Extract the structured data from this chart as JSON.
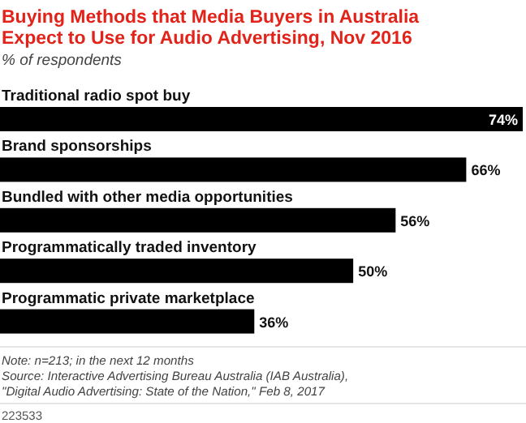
{
  "chart_data": {
    "type": "bar",
    "orientation": "horizontal",
    "title": "Buying Methods that Media Buyers in Australia Expect to Use for Audio Advertising, Nov 2016",
    "subtitle": "% of respondents",
    "categories": [
      "Traditional radio spot buy",
      "Brand sponsorships",
      "Bundled with other media opportunities",
      "Programmatically traded inventory",
      "Programmatic private marketplace"
    ],
    "values": [
      74,
      66,
      56,
      50,
      36
    ],
    "color": "#000000",
    "value_labels": [
      "74%",
      "66%",
      "56%",
      "50%",
      "36%"
    ],
    "annotations": [
      "Note: n=213; in the next 12 months",
      "Source: Interactive Advertising Bureau Australia (IAB Australia), \"Digital Audio Advertising: State of the Nation,\" Feb 8, 2017",
      "223533"
    ]
  }
}
